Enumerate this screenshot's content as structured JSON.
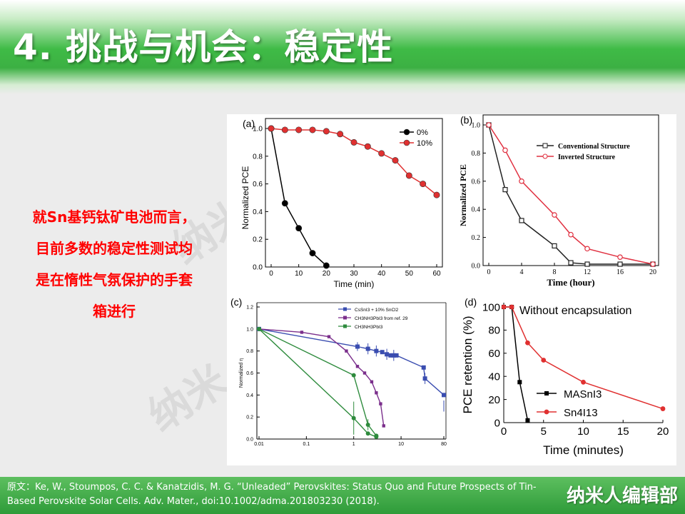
{
  "slide": {
    "title": "4. 挑战与机会：稳定性",
    "left_text": [
      "就Sn基钙钛矿电池而言，",
      "目前多数的稳定性测试均",
      "是在惰性气氛保护的手套",
      "箱进行"
    ],
    "citation": "原文：Ke, W., Stoumpos, C. C. & Kanatzidis, M. G. “Unleaded” Perovskites: Status Quo and Future Prospects of Tin-Based Perovskite Solar Cells. Adv. Mater., doi:10.1002/adma.201803230  (2018).",
    "brand": "纳米人编辑部",
    "watermark": "纳米人",
    "colors": {
      "green": "#3cb043",
      "red_text": "#ff0000"
    }
  },
  "chart_data": [
    {
      "panel": "(a)",
      "type": "line",
      "xlabel": "Time (min)",
      "ylabel": "Normalized PCE",
      "xlim": [
        0,
        60
      ],
      "ylim": [
        0,
        1.0
      ],
      "xticks": [
        0,
        10,
        20,
        30,
        40,
        50,
        60
      ],
      "yticks": [
        0.0,
        0.2,
        0.4,
        0.6,
        0.8,
        1.0
      ],
      "tick_labels_x": [
        "0",
        "10",
        "20",
        "30",
        "40",
        "50",
        "60"
      ],
      "tick_labels_y": [
        "0.0",
        "0.2",
        "0.4",
        "0.6",
        "0.8",
        "1.0"
      ],
      "series": [
        {
          "name": "0%",
          "color": "#000000",
          "x": [
            0,
            5,
            10,
            15,
            20
          ],
          "y": [
            1.0,
            0.46,
            0.28,
            0.1,
            0.01
          ]
        },
        {
          "name": "10%",
          "color": "#e03030",
          "x": [
            0,
            5,
            10,
            15,
            20,
            25,
            30,
            35,
            40,
            45,
            50,
            55,
            60
          ],
          "y": [
            1.0,
            0.99,
            0.99,
            0.99,
            0.98,
            0.96,
            0.9,
            0.87,
            0.82,
            0.77,
            0.66,
            0.6,
            0.52
          ]
        }
      ]
    },
    {
      "panel": "(b)",
      "type": "line",
      "xlabel": "Time (hour)",
      "ylabel": "Normalized PCE",
      "xlim": [
        0,
        20
      ],
      "ylim": [
        0,
        1.0
      ],
      "xticks": [
        0,
        4,
        8,
        12,
        16,
        20
      ],
      "yticks": [
        0.0,
        0.2,
        0.4,
        0.6,
        0.8,
        1.0
      ],
      "tick_labels_x": [
        "0",
        "4",
        "8",
        "12",
        "16",
        "20"
      ],
      "tick_labels_y": [
        "0.0",
        "0.2",
        "0.4",
        "0.6",
        "0.8",
        "1.0"
      ],
      "series": [
        {
          "name": "Conventional Structure",
          "color": "#222222",
          "x": [
            0,
            2,
            4,
            8,
            10,
            12,
            16,
            20
          ],
          "y": [
            1.0,
            0.54,
            0.32,
            0.14,
            0.02,
            0.01,
            0.01,
            0.01
          ]
        },
        {
          "name": "Inverted Structure",
          "color": "#e03040",
          "x": [
            0,
            2,
            4,
            8,
            10,
            12,
            16,
            20
          ],
          "y": [
            1.0,
            0.82,
            0.6,
            0.36,
            0.22,
            0.12,
            0.06,
            0.01
          ]
        }
      ]
    },
    {
      "panel": "(c)",
      "type": "line",
      "xscale": "log",
      "ylabel": "Normalized η",
      "xlim": [
        0.01,
        80
      ],
      "ylim": [
        0,
        1.2
      ],
      "xticks": [
        0.01,
        0.1,
        1,
        10,
        80
      ],
      "yticks": [
        0.0,
        0.2,
        0.4,
        0.6,
        0.8,
        1.0,
        1.2
      ],
      "tick_labels_x": [
        "0.01",
        "0.1",
        "1",
        "10",
        "80"
      ],
      "tick_labels_y": [
        "0.0",
        "0.2",
        "0.4",
        "0.6",
        "0.8",
        "1.0",
        "1.2"
      ],
      "series": [
        {
          "name": "CsSnI3 + 10% SnCl2",
          "color": "#3a4db0",
          "x": [
            0.01,
            1.2,
            2,
            3,
            4,
            5,
            6,
            7,
            8,
            30,
            32,
            80
          ],
          "y": [
            1.0,
            0.84,
            0.82,
            0.8,
            0.79,
            0.77,
            0.76,
            0.76,
            0.76,
            0.65,
            0.55,
            0.4
          ]
        },
        {
          "name": "CH3NH3PbI3 from ref. 29",
          "color": "#7b2f8c",
          "x": [
            0.01,
            0.08,
            0.3,
            0.7,
            1.2,
            1.7,
            2.4,
            3,
            3.7,
            4.3
          ],
          "y": [
            1.0,
            0.97,
            0.93,
            0.8,
            0.66,
            0.6,
            0.52,
            0.42,
            0.32,
            0.12
          ]
        },
        {
          "name": "CH3NH3PbI3",
          "color": "#2e8b3d",
          "x": [
            0.01,
            1,
            2,
            3
          ],
          "y": [
            1.0,
            0.58,
            0.13,
            0.03
          ]
        },
        {
          "name": "CH3NH3PbI3",
          "color": "#2e8b3d",
          "x": [
            0.01,
            1,
            2,
            3
          ],
          "y": [
            1.0,
            0.19,
            0.05,
            0.02
          ]
        }
      ]
    },
    {
      "panel": "(d)",
      "type": "line",
      "xlabel": "Time (minutes)",
      "ylabel": "PCE retention (%)",
      "annotation": "Without encapsulation",
      "xlim": [
        0,
        20
      ],
      "ylim": [
        0,
        100
      ],
      "xticks": [
        0,
        5,
        10,
        15,
        20
      ],
      "yticks": [
        0,
        20,
        40,
        60,
        80,
        100
      ],
      "tick_labels_x": [
        "0",
        "5",
        "10",
        "15",
        "20"
      ],
      "tick_labels_y": [
        "0",
        "20",
        "40",
        "60",
        "80",
        "100"
      ],
      "series": [
        {
          "name": "MASnI3",
          "color": "#000000",
          "x": [
            0,
            1,
            2,
            3
          ],
          "y": [
            100,
            100,
            35,
            2
          ]
        },
        {
          "name": "Sn4I13",
          "color": "#e03030",
          "x": [
            0,
            1,
            3,
            5,
            10,
            20
          ],
          "y": [
            100,
            100,
            69,
            54,
            35,
            12
          ]
        }
      ]
    }
  ]
}
